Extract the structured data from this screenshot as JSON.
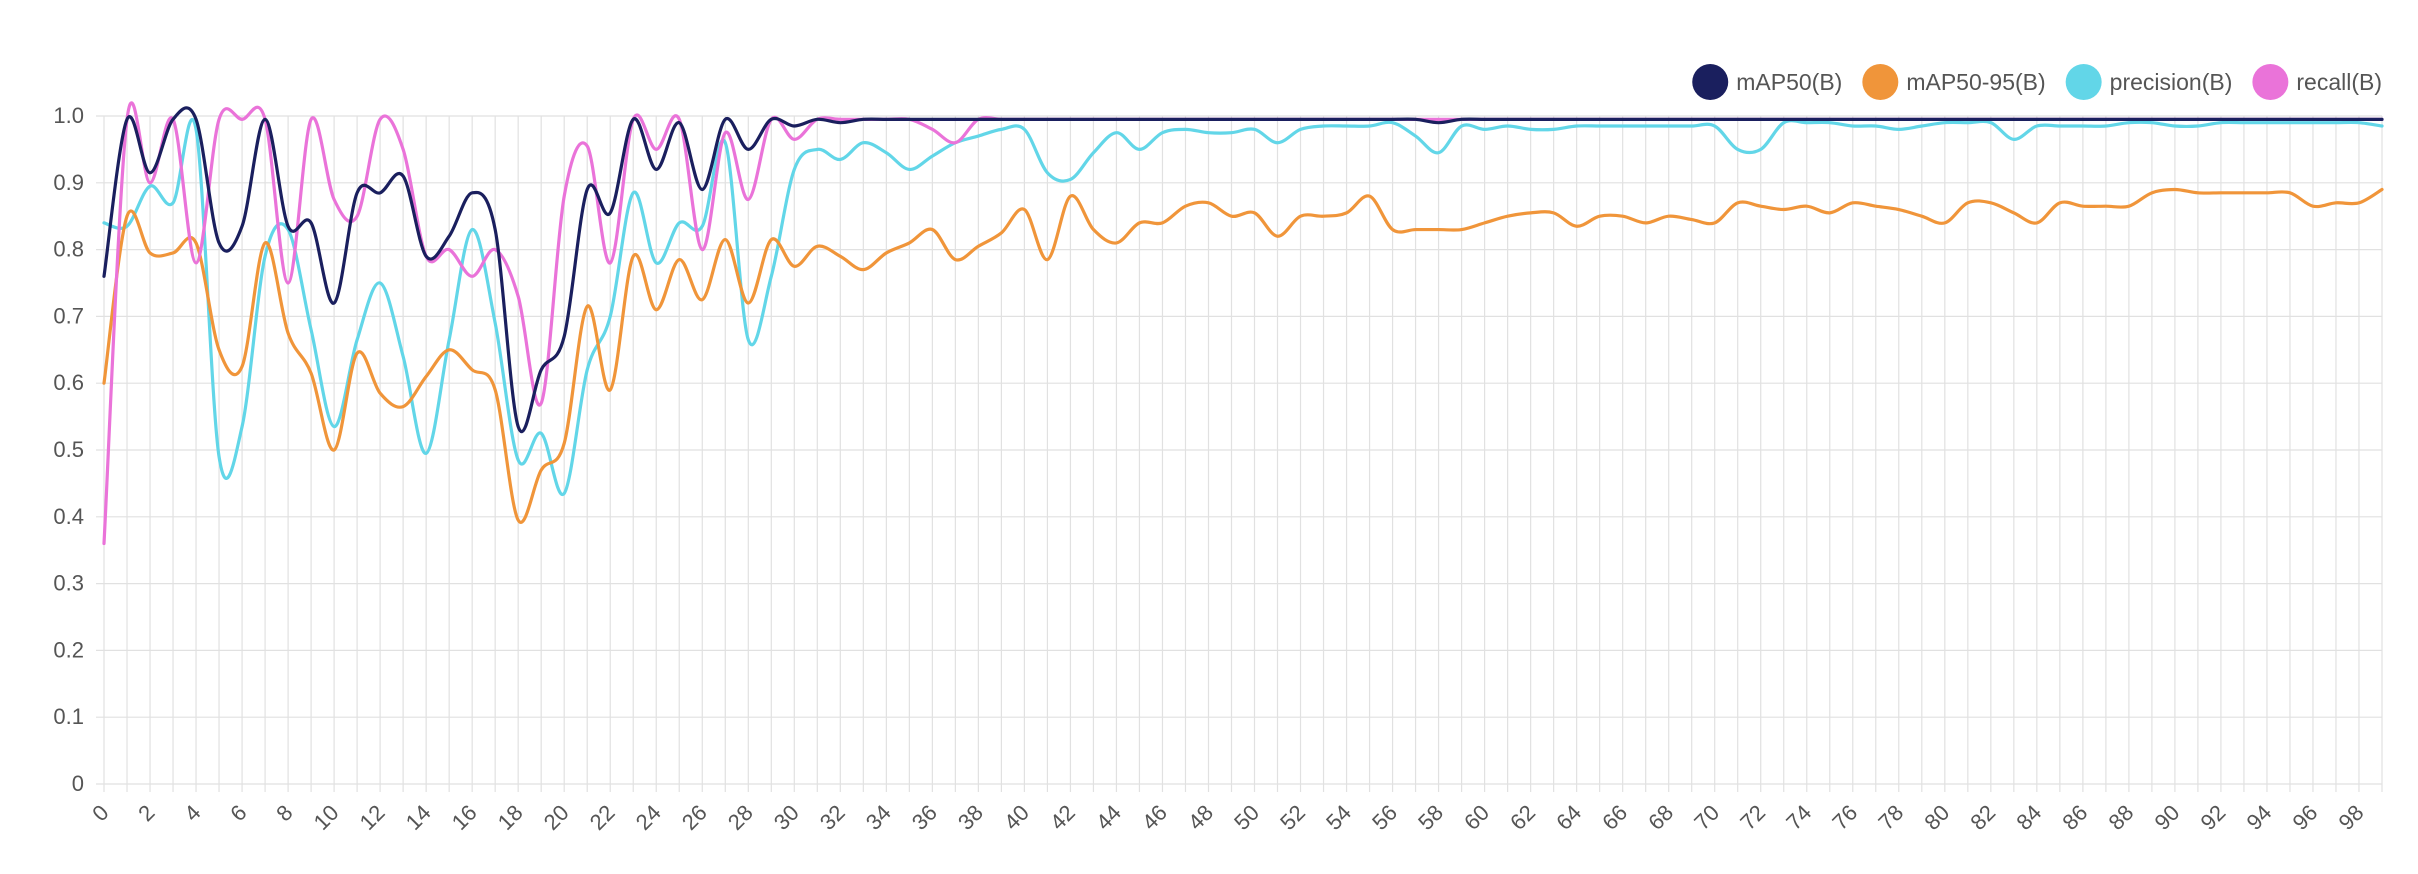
{
  "chart_data": {
    "type": "line",
    "title": "",
    "xlabel": "",
    "ylabel": "",
    "xlim": [
      0,
      99
    ],
    "ylim": [
      0,
      1.0
    ],
    "grid": true,
    "legend_position": "top-right",
    "y_ticks": [
      "0",
      "0.1",
      "0.2",
      "0.3",
      "0.4",
      "0.5",
      "0.6",
      "0.7",
      "0.8",
      "0.9",
      "1.0"
    ],
    "x_tick_step": 2,
    "x": [
      0,
      1,
      2,
      3,
      4,
      5,
      6,
      7,
      8,
      9,
      10,
      11,
      12,
      13,
      14,
      15,
      16,
      17,
      18,
      19,
      20,
      21,
      22,
      23,
      24,
      25,
      26,
      27,
      28,
      29,
      30,
      31,
      32,
      33,
      34,
      35,
      36,
      37,
      38,
      39,
      40,
      41,
      42,
      43,
      44,
      45,
      46,
      47,
      48,
      49,
      50,
      51,
      52,
      53,
      54,
      55,
      56,
      57,
      58,
      59,
      60,
      61,
      62,
      63,
      64,
      65,
      66,
      67,
      68,
      69,
      70,
      71,
      72,
      73,
      74,
      75,
      76,
      77,
      78,
      79,
      80,
      81,
      82,
      83,
      84,
      85,
      86,
      87,
      88,
      89,
      90,
      91,
      92,
      93,
      94,
      95,
      96,
      97,
      98,
      99
    ],
    "series": [
      {
        "name": "mAP50(B)",
        "color": "#1a1f5e",
        "values": [
          0.76,
          0.995,
          0.915,
          0.995,
          0.995,
          0.81,
          0.835,
          0.995,
          0.835,
          0.84,
          0.72,
          0.885,
          0.885,
          0.91,
          0.79,
          0.82,
          0.885,
          0.83,
          0.535,
          0.62,
          0.67,
          0.89,
          0.855,
          0.995,
          0.92,
          0.99,
          0.89,
          0.995,
          0.95,
          0.995,
          0.985,
          0.995,
          0.99,
          0.995,
          0.995,
          0.995,
          0.995,
          0.995,
          0.995,
          0.995,
          0.995,
          0.995,
          0.995,
          0.995,
          0.995,
          0.995,
          0.995,
          0.995,
          0.995,
          0.995,
          0.995,
          0.995,
          0.995,
          0.995,
          0.995,
          0.995,
          0.995,
          0.995,
          0.99,
          0.995,
          0.995,
          0.995,
          0.995,
          0.995,
          0.995,
          0.995,
          0.995,
          0.995,
          0.995,
          0.995,
          0.995,
          0.995,
          0.995,
          0.995,
          0.995,
          0.995,
          0.995,
          0.995,
          0.995,
          0.995,
          0.995,
          0.995,
          0.995,
          0.995,
          0.995,
          0.995,
          0.995,
          0.995,
          0.995,
          0.995,
          0.995,
          0.995,
          0.995,
          0.995,
          0.995,
          0.995,
          0.995,
          0.995,
          0.995,
          0.995
        ]
      },
      {
        "name": "mAP50-95(B)",
        "color": "#f0953a",
        "values": [
          0.6,
          0.85,
          0.795,
          0.795,
          0.81,
          0.65,
          0.625,
          0.81,
          0.675,
          0.615,
          0.5,
          0.645,
          0.585,
          0.565,
          0.61,
          0.65,
          0.62,
          0.59,
          0.395,
          0.47,
          0.51,
          0.715,
          0.59,
          0.79,
          0.71,
          0.785,
          0.725,
          0.815,
          0.72,
          0.815,
          0.775,
          0.805,
          0.79,
          0.77,
          0.795,
          0.81,
          0.83,
          0.785,
          0.805,
          0.825,
          0.86,
          0.785,
          0.88,
          0.83,
          0.81,
          0.84,
          0.84,
          0.865,
          0.87,
          0.85,
          0.855,
          0.82,
          0.85,
          0.85,
          0.855,
          0.88,
          0.83,
          0.83,
          0.83,
          0.83,
          0.84,
          0.85,
          0.855,
          0.855,
          0.835,
          0.85,
          0.85,
          0.84,
          0.85,
          0.845,
          0.84,
          0.87,
          0.865,
          0.86,
          0.865,
          0.855,
          0.87,
          0.865,
          0.86,
          0.85,
          0.84,
          0.87,
          0.87,
          0.855,
          0.84,
          0.87,
          0.865,
          0.865,
          0.865,
          0.885,
          0.89,
          0.885,
          0.885,
          0.885,
          0.885,
          0.885,
          0.865,
          0.87,
          0.87,
          0.89
        ]
      },
      {
        "name": "precision(B)",
        "color": "#62d6e8",
        "values": [
          0.84,
          0.835,
          0.895,
          0.87,
          0.98,
          0.49,
          0.535,
          0.79,
          0.83,
          0.68,
          0.535,
          0.665,
          0.75,
          0.64,
          0.495,
          0.665,
          0.83,
          0.69,
          0.485,
          0.525,
          0.435,
          0.62,
          0.7,
          0.885,
          0.78,
          0.84,
          0.835,
          0.96,
          0.665,
          0.76,
          0.92,
          0.95,
          0.935,
          0.96,
          0.945,
          0.92,
          0.94,
          0.96,
          0.97,
          0.98,
          0.98,
          0.915,
          0.905,
          0.945,
          0.975,
          0.95,
          0.975,
          0.98,
          0.975,
          0.975,
          0.98,
          0.96,
          0.98,
          0.985,
          0.985,
          0.985,
          0.99,
          0.97,
          0.945,
          0.985,
          0.98,
          0.985,
          0.98,
          0.98,
          0.985,
          0.985,
          0.985,
          0.985,
          0.985,
          0.985,
          0.985,
          0.95,
          0.95,
          0.99,
          0.99,
          0.99,
          0.985,
          0.985,
          0.98,
          0.985,
          0.99,
          0.99,
          0.99,
          0.965,
          0.985,
          0.985,
          0.985,
          0.985,
          0.99,
          0.99,
          0.985,
          0.985,
          0.99,
          0.99,
          0.99,
          0.99,
          0.99,
          0.99,
          0.99,
          0.985
        ]
      },
      {
        "name": "recall(B)",
        "color": "#ea73d9",
        "values": [
          0.36,
          0.995,
          0.9,
          0.995,
          0.78,
          0.995,
          0.995,
          0.995,
          0.75,
          0.995,
          0.875,
          0.85,
          0.995,
          0.95,
          0.79,
          0.8,
          0.76,
          0.8,
          0.73,
          0.57,
          0.88,
          0.955,
          0.78,
          0.995,
          0.95,
          0.995,
          0.8,
          0.975,
          0.875,
          0.995,
          0.965,
          0.995,
          0.995,
          0.995,
          0.995,
          0.995,
          0.98,
          0.96,
          0.995,
          0.995,
          0.995,
          0.995,
          0.995,
          0.995,
          0.995,
          0.995,
          0.995,
          0.995,
          0.995,
          0.995,
          0.995,
          0.995,
          0.995,
          0.995,
          0.995,
          0.995,
          0.995,
          0.995,
          0.995,
          0.995,
          0.995,
          0.995,
          0.995,
          0.995,
          0.995,
          0.995,
          0.995,
          0.995,
          0.995,
          0.995,
          0.995,
          0.995,
          0.995,
          0.995,
          0.995,
          0.995,
          0.995,
          0.995,
          0.995,
          0.995,
          0.995,
          0.995,
          0.995,
          0.995,
          0.995,
          0.995,
          0.995,
          0.995,
          0.995,
          0.995,
          0.995,
          0.995,
          0.995,
          0.995,
          0.995,
          0.995,
          0.995,
          0.995,
          0.995,
          0.995
        ]
      }
    ]
  }
}
